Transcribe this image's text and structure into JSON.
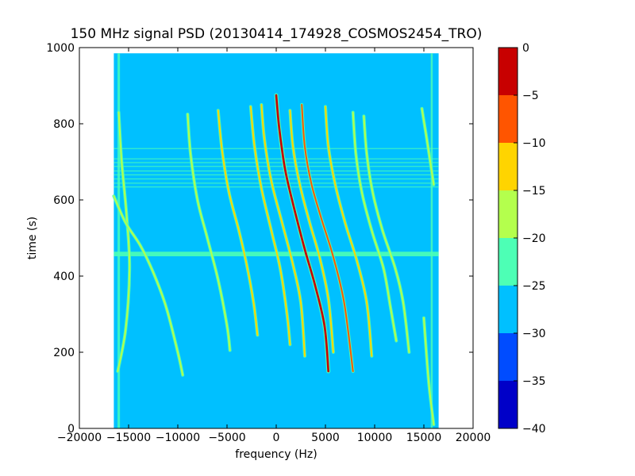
{
  "chart_data": {
    "type": "heatmap",
    "title": "150 MHz signal PSD (20130414_174928_COSMOS2454_TRO)",
    "xlabel": "frequency (Hz)",
    "ylabel": "time (s)",
    "xlim": [
      -20000,
      20000
    ],
    "ylim": [
      0,
      1000
    ],
    "xticks": [
      -20000,
      -15000,
      -10000,
      -5000,
      0,
      5000,
      10000,
      15000,
      20000
    ],
    "yticks": [
      0,
      200,
      400,
      600,
      800,
      1000
    ],
    "grid": false,
    "data_extent": {
      "x": [
        -16500,
        16500
      ],
      "y": [
        0,
        985
      ]
    },
    "background_level_db": -27.5,
    "horizontal_bands": [
      {
        "time": 458,
        "width_s": 12,
        "level_db": -22
      },
      {
        "time": 735,
        "width_s": 2,
        "level_db": -22
      },
      {
        "time": 708,
        "width_s": 2,
        "level_db": -22
      },
      {
        "time": 698,
        "width_s": 2,
        "level_db": -22
      },
      {
        "time": 688,
        "width_s": 2,
        "level_db": -22
      },
      {
        "time": 676,
        "width_s": 2,
        "level_db": -22
      },
      {
        "time": 666,
        "width_s": 2,
        "level_db": -22
      },
      {
        "time": 655,
        "width_s": 2,
        "level_db": -22
      },
      {
        "time": 644,
        "width_s": 2,
        "level_db": -22
      },
      {
        "time": 634,
        "width_s": 2,
        "level_db": -22
      }
    ],
    "vertical_bands": [
      {
        "freq": -16000,
        "width_hz": 250,
        "level_db": -22
      },
      {
        "freq": 15800,
        "width_hz": 200,
        "level_db": -22
      }
    ],
    "series": [
      {
        "points": [
          [
            -16000,
            830
          ],
          [
            -15700,
            700
          ],
          [
            -15200,
            560
          ],
          [
            -14900,
            420
          ],
          [
            -15300,
            260
          ],
          [
            -16100,
            150
          ]
        ],
        "level_db": -22
      },
      {
        "points": [
          [
            -16500,
            610
          ],
          [
            -15300,
            540
          ],
          [
            -13800,
            480
          ],
          [
            -12500,
            410
          ],
          [
            -11200,
            320
          ],
          [
            -10000,
            200
          ],
          [
            -9500,
            140
          ]
        ],
        "level_db": -20
      },
      {
        "points": [
          [
            -9000,
            825
          ],
          [
            -8700,
            720
          ],
          [
            -8000,
            600
          ],
          [
            -7000,
            500
          ],
          [
            -5900,
            390
          ],
          [
            -5000,
            270
          ],
          [
            -4700,
            205
          ]
        ],
        "level_db": -20
      },
      {
        "points": [
          [
            -5900,
            835
          ],
          [
            -5500,
            730
          ],
          [
            -4800,
            620
          ],
          [
            -3800,
            520
          ],
          [
            -3000,
            430
          ],
          [
            -2300,
            330
          ],
          [
            -1900,
            245
          ]
        ],
        "level_db": -19
      },
      {
        "points": [
          [
            -2600,
            845
          ],
          [
            -2200,
            740
          ],
          [
            -1500,
            630
          ],
          [
            -500,
            520
          ],
          [
            400,
            420
          ],
          [
            1100,
            300
          ],
          [
            1400,
            220
          ]
        ],
        "level_db": -17
      },
      {
        "points": [
          [
            -1500,
            850
          ],
          [
            -1200,
            760
          ],
          [
            -500,
            650
          ],
          [
            600,
            540
          ],
          [
            1700,
            430
          ],
          [
            2500,
            330
          ],
          [
            2900,
            190
          ]
        ],
        "level_db": -16
      },
      {
        "points": [
          [
            0,
            875
          ],
          [
            300,
            790
          ],
          [
            900,
            680
          ],
          [
            1800,
            580
          ],
          [
            2900,
            470
          ],
          [
            3900,
            380
          ],
          [
            4900,
            270
          ],
          [
            5300,
            150
          ]
        ],
        "level_db": -3
      },
      {
        "points": [
          [
            1400,
            835
          ],
          [
            1700,
            740
          ],
          [
            2400,
            640
          ],
          [
            3400,
            540
          ],
          [
            4400,
            450
          ],
          [
            5300,
            340
          ],
          [
            5800,
            200
          ]
        ],
        "level_db": -15
      },
      {
        "points": [
          [
            2600,
            850
          ],
          [
            2900,
            740
          ],
          [
            3600,
            640
          ],
          [
            4600,
            550
          ],
          [
            5800,
            450
          ],
          [
            6900,
            330
          ],
          [
            7800,
            150
          ]
        ],
        "level_db": -14
      },
      {
        "points": [
          [
            5000,
            845
          ],
          [
            5300,
            740
          ],
          [
            6000,
            640
          ],
          [
            7000,
            540
          ],
          [
            8200,
            440
          ],
          [
            9200,
            330
          ],
          [
            9700,
            190
          ]
        ],
        "level_db": -15
      },
      {
        "points": [
          [
            7800,
            830
          ],
          [
            8100,
            720
          ],
          [
            8700,
            620
          ],
          [
            9700,
            520
          ],
          [
            10900,
            420
          ],
          [
            11600,
            320
          ],
          [
            12200,
            230
          ]
        ],
        "level_db": -20
      },
      {
        "points": [
          [
            8900,
            820
          ],
          [
            9200,
            720
          ],
          [
            9800,
            620
          ],
          [
            10800,
            520
          ],
          [
            12100,
            420
          ],
          [
            12900,
            330
          ],
          [
            13500,
            200
          ]
        ],
        "level_db": -21
      },
      {
        "points": [
          [
            14800,
            840
          ],
          [
            15300,
            760
          ],
          [
            16000,
            640
          ]
        ],
        "level_db": -20
      },
      {
        "points": [
          [
            15000,
            290
          ],
          [
            15500,
            120
          ],
          [
            16000,
            10
          ]
        ],
        "level_db": -22
      }
    ],
    "colorbar": {
      "ticks": [
        0,
        -5,
        -10,
        -15,
        -20,
        -25,
        -30,
        -35,
        -40
      ],
      "range": [
        -40,
        0
      ],
      "levels": [
        {
          "from": -40,
          "to": -35,
          "color": "#0000c8"
        },
        {
          "from": -35,
          "to": -30,
          "color": "#004cff"
        },
        {
          "from": -30,
          "to": -25,
          "color": "#00c0ff"
        },
        {
          "from": -25,
          "to": -20,
          "color": "#4dffb5"
        },
        {
          "from": -20,
          "to": -15,
          "color": "#b4ff4d"
        },
        {
          "from": -15,
          "to": -10,
          "color": "#ffd400"
        },
        {
          "from": -10,
          "to": -5,
          "color": "#ff5500"
        },
        {
          "from": -5,
          "to": 0,
          "color": "#c80000"
        }
      ]
    }
  }
}
